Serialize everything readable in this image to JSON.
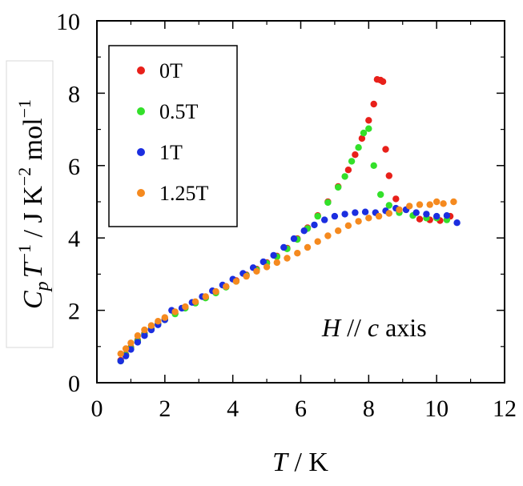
{
  "chart_data": {
    "type": "scatter",
    "xlim": [
      0,
      12
    ],
    "ylim": [
      0,
      10
    ],
    "x_ticks": [
      "0",
      "2",
      "4",
      "6",
      "8",
      "10",
      "12"
    ],
    "y_ticks": [
      "0",
      "2",
      "4",
      "6",
      "8",
      "10"
    ],
    "xlabel": {
      "italic": "T",
      "rest": " / K"
    },
    "ylabel": {
      "C": "C",
      "p": "p",
      "T": "T",
      "exp1": "−1",
      "unit": " / J K",
      "exp2": "−2",
      "mol": " mol",
      "exp3": "−1"
    },
    "annotation": {
      "H": "H",
      "par": " // ",
      "c": "c",
      "axis": " axis"
    },
    "legend_position": "top-left",
    "grid": false,
    "series": [
      {
        "name": "0T",
        "color": "#e8201a",
        "points": [
          [
            0.7,
            0.62
          ],
          [
            0.85,
            0.78
          ],
          [
            1.0,
            0.98
          ],
          [
            1.2,
            1.18
          ],
          [
            1.4,
            1.36
          ],
          [
            1.6,
            1.5
          ],
          [
            1.8,
            1.64
          ],
          [
            2.0,
            1.76
          ],
          [
            2.3,
            1.92
          ],
          [
            2.6,
            2.08
          ],
          [
            2.9,
            2.22
          ],
          [
            3.2,
            2.36
          ],
          [
            3.5,
            2.5
          ],
          [
            3.8,
            2.66
          ],
          [
            4.1,
            2.82
          ],
          [
            4.4,
            2.98
          ],
          [
            4.7,
            3.14
          ],
          [
            5.0,
            3.32
          ],
          [
            5.3,
            3.5
          ],
          [
            5.6,
            3.72
          ],
          [
            5.9,
            3.98
          ],
          [
            6.2,
            4.28
          ],
          [
            6.5,
            4.62
          ],
          [
            6.8,
            5.0
          ],
          [
            7.1,
            5.42
          ],
          [
            7.4,
            5.88
          ],
          [
            7.6,
            6.3
          ],
          [
            7.8,
            6.75
          ],
          [
            8.0,
            7.25
          ],
          [
            8.15,
            7.7
          ],
          [
            8.25,
            8.38
          ],
          [
            8.35,
            8.36
          ],
          [
            8.42,
            8.32
          ],
          [
            8.5,
            6.45
          ],
          [
            8.6,
            5.72
          ],
          [
            8.8,
            5.08
          ],
          [
            9.1,
            4.78
          ],
          [
            9.5,
            4.52
          ],
          [
            9.8,
            4.5
          ],
          [
            10.1,
            4.48
          ],
          [
            10.4,
            4.6
          ]
        ]
      },
      {
        "name": "0.5T",
        "color": "#33e02a",
        "points": [
          [
            0.7,
            0.6
          ],
          [
            0.85,
            0.76
          ],
          [
            1.0,
            0.95
          ],
          [
            1.2,
            1.15
          ],
          [
            1.4,
            1.33
          ],
          [
            1.6,
            1.48
          ],
          [
            1.8,
            1.62
          ],
          [
            2.0,
            1.74
          ],
          [
            2.3,
            1.9
          ],
          [
            2.6,
            2.06
          ],
          [
            2.9,
            2.2
          ],
          [
            3.2,
            2.34
          ],
          [
            3.5,
            2.48
          ],
          [
            3.8,
            2.64
          ],
          [
            4.1,
            2.8
          ],
          [
            4.4,
            2.96
          ],
          [
            4.7,
            3.12
          ],
          [
            5.0,
            3.3
          ],
          [
            5.3,
            3.48
          ],
          [
            5.6,
            3.7
          ],
          [
            5.9,
            3.96
          ],
          [
            6.2,
            4.26
          ],
          [
            6.5,
            4.6
          ],
          [
            6.8,
            4.98
          ],
          [
            7.1,
            5.4
          ],
          [
            7.3,
            5.7
          ],
          [
            7.5,
            6.12
          ],
          [
            7.7,
            6.5
          ],
          [
            7.85,
            6.9
          ],
          [
            8.0,
            7.02
          ],
          [
            8.15,
            6.0
          ],
          [
            8.35,
            5.2
          ],
          [
            8.6,
            4.9
          ],
          [
            8.9,
            4.7
          ],
          [
            9.3,
            4.62
          ],
          [
            9.7,
            4.55
          ],
          [
            10.0,
            4.55
          ],
          [
            10.3,
            4.5
          ]
        ]
      },
      {
        "name": "1T",
        "color": "#1b2ee0",
        "points": [
          [
            0.7,
            0.6
          ],
          [
            0.85,
            0.74
          ],
          [
            1.0,
            0.92
          ],
          [
            1.2,
            1.12
          ],
          [
            1.4,
            1.3
          ],
          [
            1.6,
            1.46
          ],
          [
            1.8,
            1.6
          ],
          [
            2.0,
            1.74
          ],
          [
            2.2,
            2.0
          ],
          [
            2.5,
            2.06
          ],
          [
            2.8,
            2.22
          ],
          [
            3.1,
            2.38
          ],
          [
            3.4,
            2.54
          ],
          [
            3.7,
            2.7
          ],
          [
            4.0,
            2.86
          ],
          [
            4.3,
            3.02
          ],
          [
            4.6,
            3.18
          ],
          [
            4.9,
            3.34
          ],
          [
            5.2,
            3.52
          ],
          [
            5.5,
            3.74
          ],
          [
            5.8,
            3.98
          ],
          [
            6.1,
            4.2
          ],
          [
            6.4,
            4.36
          ],
          [
            6.7,
            4.5
          ],
          [
            7.0,
            4.6
          ],
          [
            7.3,
            4.66
          ],
          [
            7.6,
            4.7
          ],
          [
            7.9,
            4.72
          ],
          [
            8.2,
            4.7
          ],
          [
            8.5,
            4.75
          ],
          [
            8.8,
            4.82
          ],
          [
            9.1,
            4.78
          ],
          [
            9.4,
            4.7
          ],
          [
            9.7,
            4.66
          ],
          [
            10.0,
            4.6
          ],
          [
            10.3,
            4.62
          ],
          [
            10.6,
            4.42
          ]
        ]
      },
      {
        "name": "1.25T",
        "color": "#f58a1f",
        "points": [
          [
            0.7,
            0.8
          ],
          [
            0.85,
            0.94
          ],
          [
            1.0,
            1.1
          ],
          [
            1.2,
            1.3
          ],
          [
            1.4,
            1.46
          ],
          [
            1.6,
            1.58
          ],
          [
            1.8,
            1.7
          ],
          [
            2.0,
            1.8
          ],
          [
            2.3,
            1.96
          ],
          [
            2.6,
            2.1
          ],
          [
            2.9,
            2.24
          ],
          [
            3.2,
            2.38
          ],
          [
            3.5,
            2.52
          ],
          [
            3.8,
            2.66
          ],
          [
            4.1,
            2.8
          ],
          [
            4.4,
            2.94
          ],
          [
            4.7,
            3.08
          ],
          [
            5.0,
            3.2
          ],
          [
            5.3,
            3.32
          ],
          [
            5.6,
            3.44
          ],
          [
            5.9,
            3.58
          ],
          [
            6.2,
            3.74
          ],
          [
            6.5,
            3.9
          ],
          [
            6.8,
            4.06
          ],
          [
            7.1,
            4.2
          ],
          [
            7.4,
            4.34
          ],
          [
            7.7,
            4.46
          ],
          [
            8.0,
            4.55
          ],
          [
            8.3,
            4.6
          ],
          [
            8.6,
            4.68
          ],
          [
            8.9,
            4.78
          ],
          [
            9.2,
            4.88
          ],
          [
            9.5,
            4.92
          ],
          [
            9.8,
            4.92
          ],
          [
            10.0,
            5.0
          ],
          [
            10.2,
            4.95
          ],
          [
            10.5,
            5.0
          ]
        ]
      }
    ]
  }
}
